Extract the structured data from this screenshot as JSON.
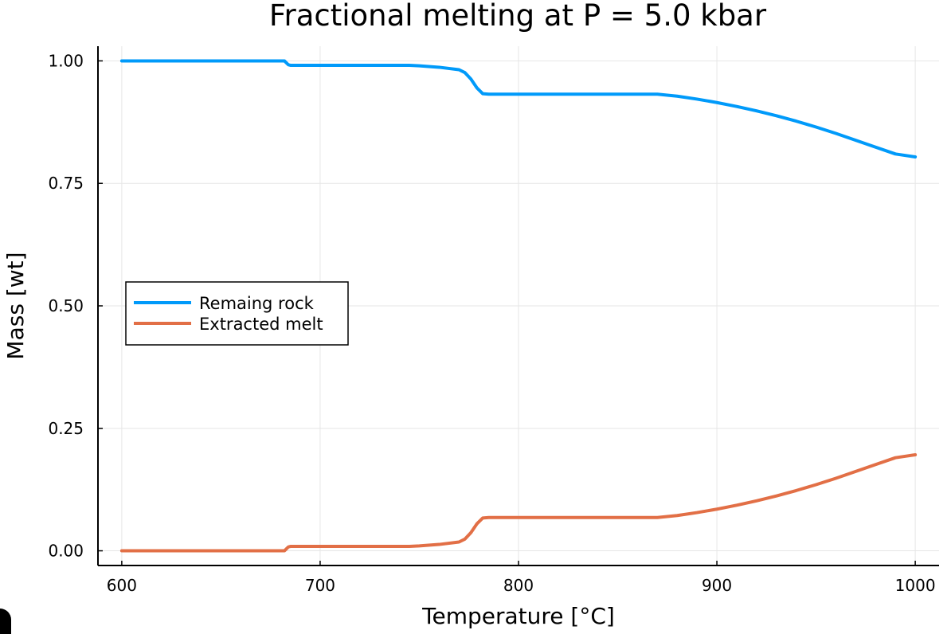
{
  "chart_data": {
    "type": "line",
    "title": "Fractional melting at P = 5.0 kbar",
    "xlabel": "Temperature [°C]",
    "ylabel": "Mass [wt]",
    "xlim": [
      588,
      1012
    ],
    "ylim": [
      -0.03,
      1.03
    ],
    "xticks": [
      600,
      700,
      800,
      900,
      1000
    ],
    "xtick_labels": [
      "600",
      "700",
      "800",
      "900",
      "1000"
    ],
    "yticks": [
      0.0,
      0.25,
      0.5,
      0.75,
      1.0
    ],
    "ytick_labels": [
      "0.00",
      "0.25",
      "0.50",
      "0.75",
      "1.00"
    ],
    "grid": true,
    "legend_position": "center-left",
    "series": [
      {
        "name": "Remaing rock",
        "color": "#009AFA",
        "x": [
          600,
          682,
          683,
          684,
          685,
          690,
          745,
          750,
          760,
          770,
          773,
          776,
          779,
          782,
          785,
          800,
          820,
          850,
          870,
          880,
          890,
          900,
          910,
          920,
          930,
          940,
          950,
          960,
          970,
          980,
          990,
          1000
        ],
        "y": [
          1.0,
          1.0,
          0.996,
          0.992,
          0.991,
          0.991,
          0.991,
          0.99,
          0.987,
          0.982,
          0.976,
          0.963,
          0.945,
          0.933,
          0.932,
          0.932,
          0.932,
          0.932,
          0.932,
          0.928,
          0.922,
          0.915,
          0.907,
          0.898,
          0.888,
          0.877,
          0.865,
          0.852,
          0.838,
          0.824,
          0.81,
          0.804
        ]
      },
      {
        "name": "Extracted melt",
        "color": "#E26F46",
        "x": [
          600,
          682,
          683,
          684,
          685,
          690,
          745,
          750,
          760,
          770,
          773,
          776,
          779,
          782,
          785,
          800,
          820,
          850,
          870,
          880,
          890,
          900,
          910,
          920,
          930,
          940,
          950,
          960,
          970,
          980,
          990,
          1000
        ],
        "y": [
          0.0,
          0.0,
          0.004,
          0.008,
          0.009,
          0.009,
          0.009,
          0.01,
          0.013,
          0.018,
          0.024,
          0.037,
          0.055,
          0.067,
          0.068,
          0.068,
          0.068,
          0.068,
          0.068,
          0.072,
          0.078,
          0.085,
          0.093,
          0.102,
          0.112,
          0.123,
          0.135,
          0.148,
          0.162,
          0.176,
          0.19,
          0.196
        ]
      }
    ]
  }
}
